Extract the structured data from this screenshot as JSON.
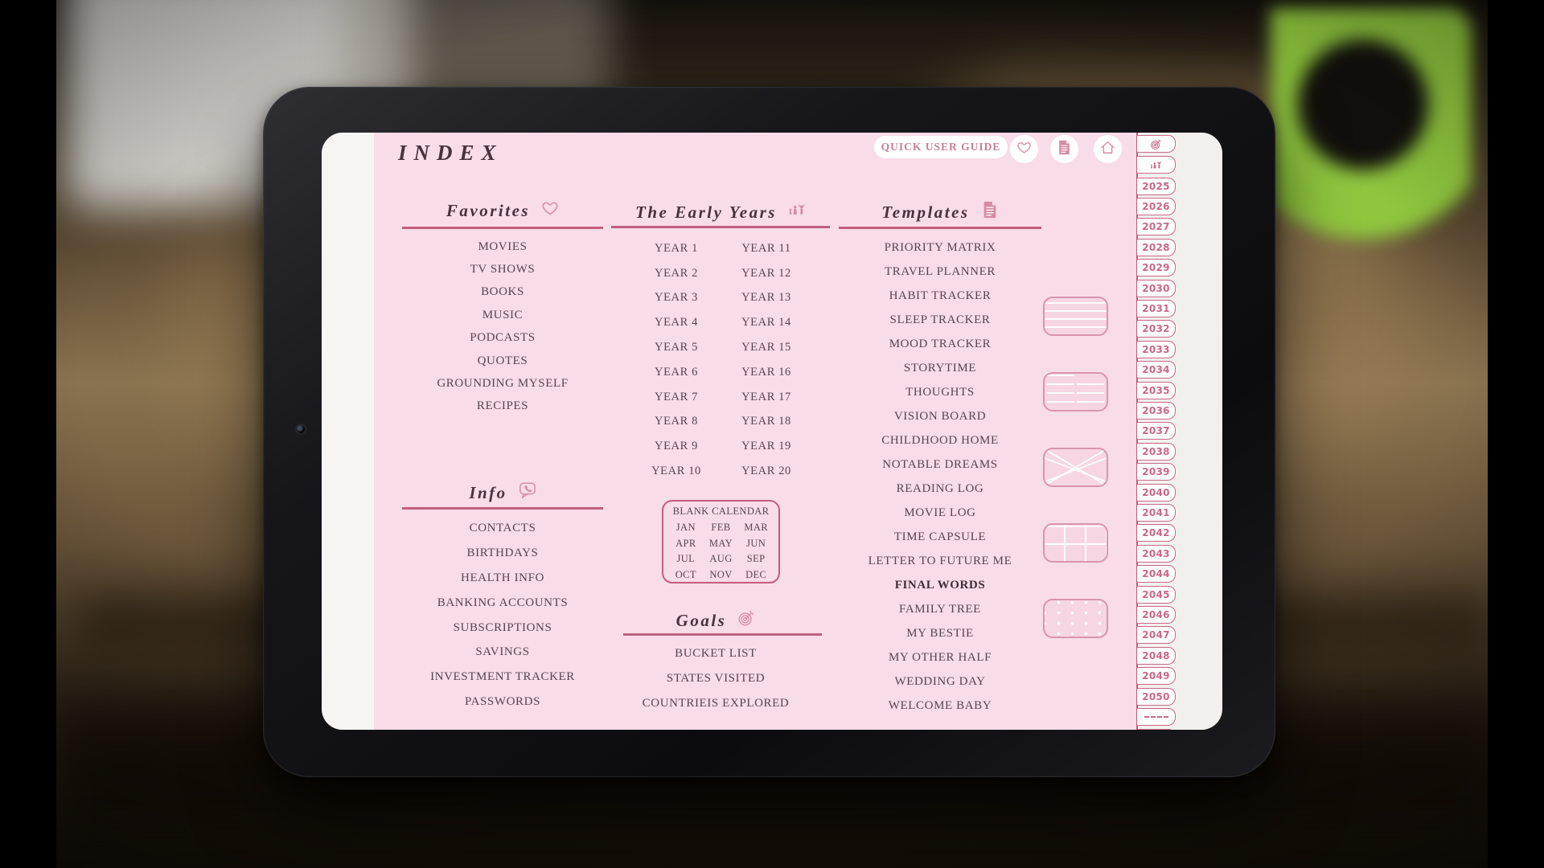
{
  "page_title": "INDEX",
  "topbar": {
    "quick_user_guide": "QUICK USER GUIDE",
    "buttons": [
      "heart-icon",
      "document-icon",
      "home-icon"
    ]
  },
  "sections": {
    "favorites": {
      "title": "Favorites",
      "icon": "heart-icon",
      "items": [
        "MOVIES",
        "TV SHOWS",
        "BOOKS",
        "MUSIC",
        "PODCASTS",
        "QUOTES",
        "GROUNDING MYSELF",
        "RECIPES"
      ]
    },
    "early_years": {
      "title": "The Early Years",
      "icon": "family-icon",
      "col1": [
        "YEAR 1",
        "YEAR 2",
        "YEAR 3",
        "YEAR 4",
        "YEAR 5",
        "YEAR 6",
        "YEAR 7",
        "YEAR 8",
        "YEAR 9",
        "YEAR 10"
      ],
      "col2": [
        "YEAR 11",
        "YEAR 12",
        "YEAR 13",
        "YEAR 14",
        "YEAR 15",
        "YEAR 16",
        "YEAR 17",
        "YEAR 18",
        "YEAR 19",
        "YEAR 20"
      ]
    },
    "calendar": {
      "title": "BLANK CALENDAR",
      "months": [
        "JAN",
        "FEB",
        "MAR",
        "APR",
        "MAY",
        "JUN",
        "JUL",
        "AUG",
        "SEP",
        "OCT",
        "NOV",
        "DEC"
      ]
    },
    "goals": {
      "title": "Goals",
      "icon": "target-icon",
      "items": [
        "BUCKET LIST",
        "STATES VISITED",
        "COUNTRIEIS EXPLORED"
      ]
    },
    "info": {
      "title": "Info",
      "icon": "phone-bubble-icon",
      "items": [
        "CONTACTS",
        "BIRTHDAYS",
        "HEALTH INFO",
        "BANKING ACCOUNTS",
        "SUBSCRIPTIONS",
        "SAVINGS",
        "INVESTMENT TRACKER",
        "PASSWORDS"
      ]
    },
    "templates": {
      "title": "Templates",
      "icon": "document-icon",
      "items": [
        "PRIORITY MATRIX",
        "TRAVEL PLANNER",
        "HABIT TRACKER",
        "SLEEP TRACKER",
        "MOOD TRACKER",
        "STORYTIME",
        "THOUGHTS",
        "VISION BOARD",
        "CHILDHOOD HOME",
        "NOTABLE DREAMS",
        "READING LOG",
        "MOVIE LOG",
        "TIME CAPSULE",
        "LETTER TO FUTURE ME",
        "FINAL WORDS",
        "FAMILY TREE",
        "MY BESTIE",
        "MY OTHER HALF",
        "WEDDING DAY",
        "WELCOME BABY"
      ],
      "bold_item": "FINAL WORDS"
    }
  },
  "thumbnails": [
    "lined",
    "two-column",
    "triangles",
    "grid",
    "dotted"
  ],
  "sidebar": {
    "icon_tabs": [
      "target-icon",
      "family-icon"
    ],
    "years": [
      "2025",
      "2026",
      "2027",
      "2028",
      "2029",
      "2030",
      "2031",
      "2032",
      "2033",
      "2034",
      "2035",
      "2036",
      "2037",
      "2038",
      "2039",
      "2040",
      "2041",
      "2042",
      "2043",
      "2044",
      "2045",
      "2046",
      "2047",
      "2048",
      "2049",
      "2050"
    ],
    "extra_tabs": [
      "dashed",
      "partial"
    ]
  },
  "colors": {
    "pink": "#f8dce8",
    "accent": "#c25e7e",
    "tab": "#c9688a",
    "text": "#574550",
    "header": "#48323c",
    "pill": "#c87e97",
    "icon": "#d68ca4",
    "thumbborder": "#d995ad"
  }
}
